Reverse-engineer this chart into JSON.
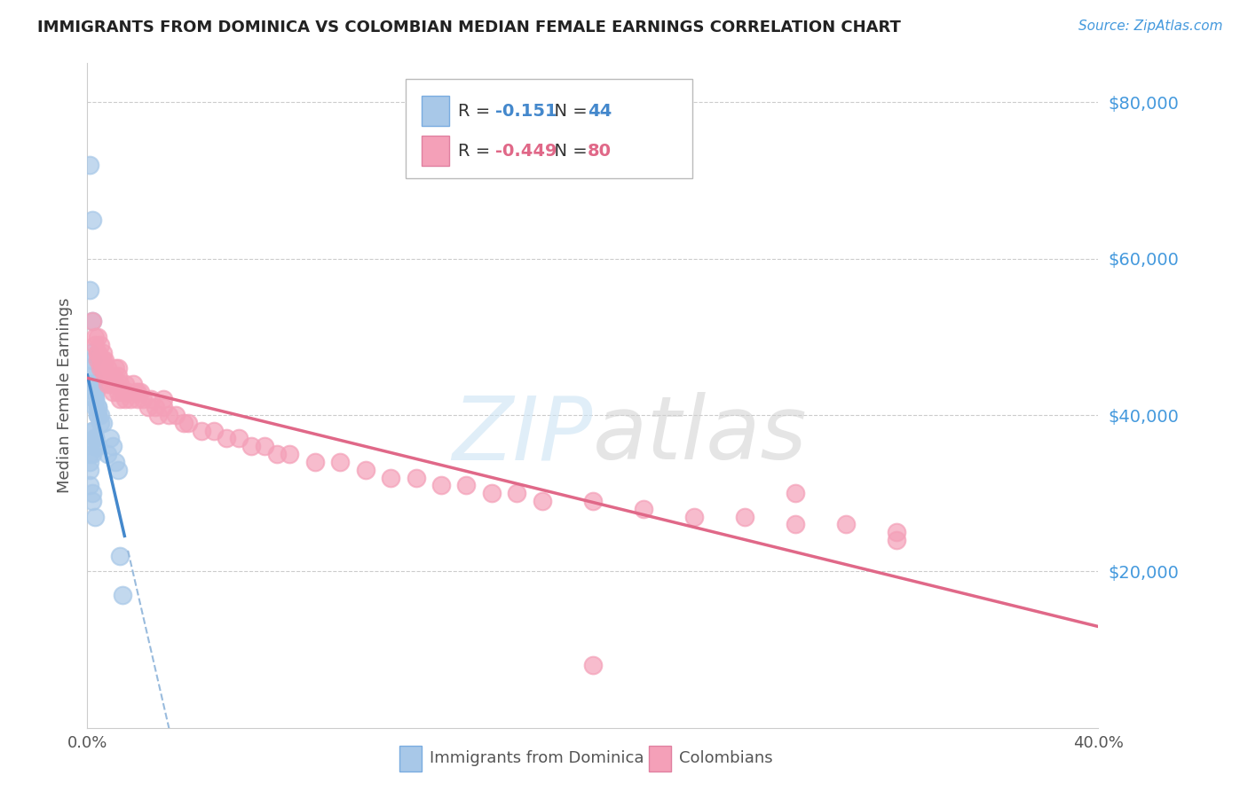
{
  "title": "IMMIGRANTS FROM DOMINICA VS COLOMBIAN MEDIAN FEMALE EARNINGS CORRELATION CHART",
  "source": "Source: ZipAtlas.com",
  "ylabel": "Median Female Earnings",
  "yticks": [
    0,
    20000,
    40000,
    60000,
    80000
  ],
  "ytick_labels": [
    "",
    "$20,000",
    "$40,000",
    "$60,000",
    "$80,000"
  ],
  "xmin": 0.0,
  "xmax": 0.4,
  "ymin": 0,
  "ymax": 85000,
  "dominica_color": "#a8c8e8",
  "colombian_color": "#f4a0b8",
  "dominica_line_color": "#4488cc",
  "colombian_line_color": "#e06888",
  "dominica_dash_color": "#99bbdd",
  "dominica_R": -0.151,
  "dominica_N": 44,
  "colombian_R": -0.449,
  "colombian_N": 80,
  "legend_dominica": "Immigrants from Dominica",
  "legend_colombian": "Colombians",
  "dominica_x": [
    0.001,
    0.002,
    0.001,
    0.002,
    0.001,
    0.002,
    0.001,
    0.002,
    0.002,
    0.002,
    0.003,
    0.003,
    0.003,
    0.003,
    0.003,
    0.003,
    0.004,
    0.004,
    0.004,
    0.004,
    0.005,
    0.005,
    0.006,
    0.002,
    0.002,
    0.003,
    0.003,
    0.003,
    0.004,
    0.002,
    0.001,
    0.001,
    0.001,
    0.001,
    0.002,
    0.002,
    0.003,
    0.008,
    0.009,
    0.01,
    0.011,
    0.012,
    0.013,
    0.014
  ],
  "dominica_y": [
    72000,
    65000,
    56000,
    52000,
    48000,
    47000,
    46000,
    45000,
    44000,
    44000,
    43000,
    43000,
    43000,
    42000,
    42000,
    41000,
    41000,
    41000,
    40000,
    40000,
    40000,
    39000,
    39000,
    38000,
    38000,
    37000,
    37000,
    36000,
    36000,
    35000,
    35000,
    34000,
    33000,
    31000,
    30000,
    29000,
    27000,
    35000,
    37000,
    36000,
    34000,
    33000,
    22000,
    17000
  ],
  "colombian_x": [
    0.002,
    0.003,
    0.003,
    0.004,
    0.004,
    0.004,
    0.005,
    0.005,
    0.005,
    0.006,
    0.006,
    0.006,
    0.007,
    0.007,
    0.008,
    0.008,
    0.009,
    0.009,
    0.01,
    0.01,
    0.011,
    0.011,
    0.012,
    0.012,
    0.013,
    0.013,
    0.014,
    0.015,
    0.015,
    0.016,
    0.017,
    0.018,
    0.019,
    0.02,
    0.021,
    0.022,
    0.024,
    0.025,
    0.027,
    0.028,
    0.03,
    0.032,
    0.035,
    0.038,
    0.04,
    0.045,
    0.05,
    0.055,
    0.06,
    0.065,
    0.07,
    0.075,
    0.08,
    0.09,
    0.1,
    0.11,
    0.12,
    0.13,
    0.14,
    0.15,
    0.16,
    0.17,
    0.18,
    0.2,
    0.22,
    0.24,
    0.26,
    0.28,
    0.3,
    0.32,
    0.004,
    0.006,
    0.008,
    0.01,
    0.012,
    0.015,
    0.02,
    0.03,
    0.28,
    0.32
  ],
  "colombian_y": [
    52000,
    50000,
    49000,
    50000,
    48000,
    47000,
    49000,
    47000,
    46000,
    48000,
    47000,
    46000,
    47000,
    45000,
    46000,
    44000,
    45000,
    44000,
    45000,
    43000,
    46000,
    44000,
    45000,
    43000,
    44000,
    42000,
    43000,
    44000,
    42000,
    43000,
    42000,
    44000,
    43000,
    42000,
    43000,
    42000,
    41000,
    42000,
    41000,
    40000,
    41000,
    40000,
    40000,
    39000,
    39000,
    38000,
    38000,
    37000,
    37000,
    36000,
    36000,
    35000,
    35000,
    34000,
    34000,
    33000,
    32000,
    32000,
    31000,
    31000,
    30000,
    30000,
    29000,
    29000,
    28000,
    27000,
    27000,
    26000,
    26000,
    25000,
    48000,
    46000,
    45000,
    44000,
    46000,
    43000,
    43000,
    42000,
    30000,
    24000
  ],
  "col_one_outlier_x": [
    0.2
  ],
  "col_one_outlier_y": [
    8000
  ]
}
